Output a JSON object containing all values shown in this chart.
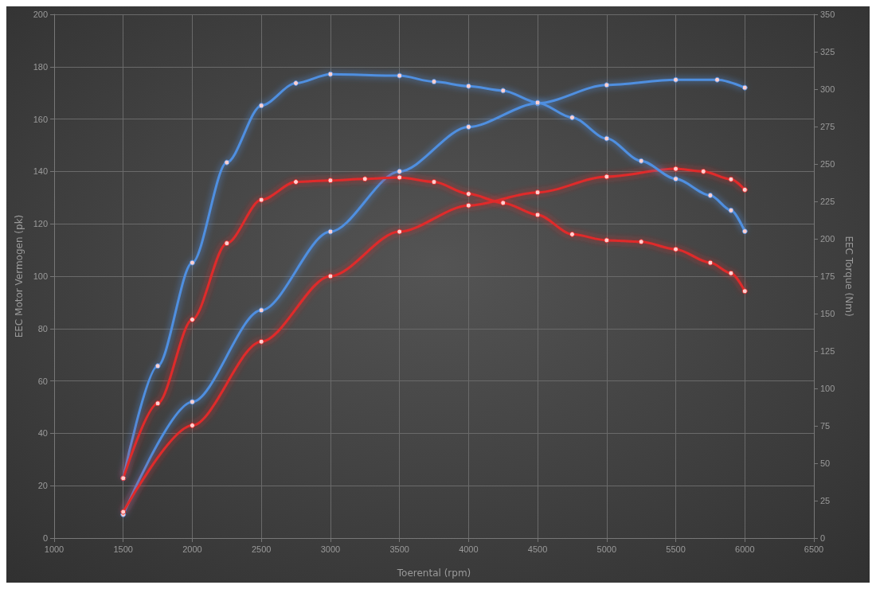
{
  "chart_data": {
    "type": "line",
    "xlabel": "Toerental (rpm)",
    "ylabel": "EEC Motor Vermogen (pk)",
    "y2label": "EEC Torque (Nm)",
    "xlim": [
      1000,
      6500
    ],
    "xticks": [
      1000,
      1500,
      2000,
      2500,
      3000,
      3500,
      4000,
      4500,
      5000,
      5500,
      6000,
      6500
    ],
    "ylim": [
      0,
      200
    ],
    "yticks": [
      0,
      20,
      40,
      60,
      80,
      100,
      120,
      140,
      160,
      180,
      200
    ],
    "y2lim": [
      0,
      350
    ],
    "y2ticks": [
      0,
      25,
      50,
      75,
      100,
      125,
      150,
      175,
      200,
      225,
      250,
      275,
      300,
      325,
      350
    ],
    "grid": true,
    "marker": "circle",
    "line_style": "solid",
    "series": [
      {
        "color": "#4f8fe0",
        "x": [
          1500,
          2000,
          2500,
          3000,
          3500,
          4000,
          4500,
          5000,
          5500,
          5800,
          6000
        ],
        "values": [
          9,
          52,
          87,
          117,
          140,
          157,
          166,
          173,
          175,
          175,
          172
        ]
      },
      {
        "color": "#e02a2a",
        "x": [
          1500,
          2000,
          2500,
          3000,
          3500,
          4000,
          4500,
          5000,
          5500,
          5700,
          5900,
          6000
        ],
        "values": [
          10,
          43,
          75,
          100,
          117,
          127,
          132,
          138,
          141,
          140,
          137,
          133
        ]
      },
      {
        "color": "#4f8fe0",
        "axis": "y2",
        "x": [
          1500,
          1750,
          2000,
          2250,
          2500,
          2750,
          3000,
          3500,
          3750,
          4000,
          4250,
          4500,
          4750,
          5000,
          5250,
          5500,
          5750,
          5900,
          6000
        ],
        "values": [
          40,
          115,
          184,
          251,
          289,
          304,
          310,
          309,
          305,
          302,
          299,
          291,
          281,
          267,
          252,
          240,
          229,
          219,
          205
        ]
      },
      {
        "color": "#e02a2a",
        "axis": "y2",
        "x": [
          1500,
          1750,
          2000,
          2250,
          2500,
          2750,
          3000,
          3250,
          3500,
          3750,
          4000,
          4250,
          4500,
          4750,
          5000,
          5250,
          5500,
          5750,
          5900,
          6000
        ],
        "values": [
          40,
          90,
          146,
          197,
          226,
          238,
          239,
          240,
          241,
          238,
          230,
          224,
          216,
          203,
          199,
          198,
          193,
          184,
          177,
          165
        ]
      }
    ]
  }
}
